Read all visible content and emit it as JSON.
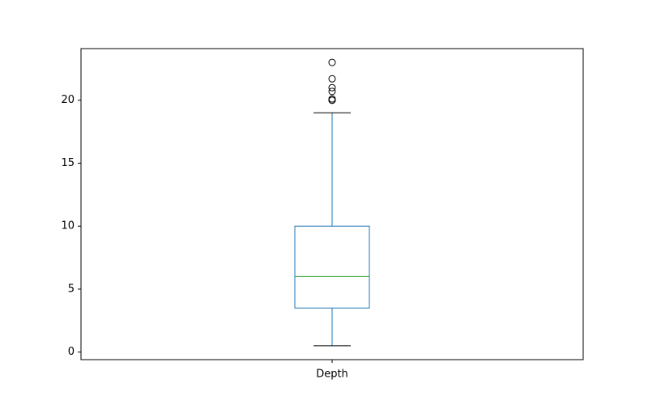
{
  "chart_data": {
    "type": "box",
    "title": "",
    "xlabel": "",
    "ylabel": "",
    "categories": [
      "Depth"
    ],
    "ylim": [
      -0.6,
      24.1
    ],
    "yticks": [
      0,
      5,
      10,
      15,
      20
    ],
    "ytick_labels": [
      "0",
      "5",
      "10",
      "15",
      "20"
    ],
    "grid": false,
    "boxes": [
      {
        "name": "Depth",
        "whisker_low": 0.5,
        "q1": 3.5,
        "median": 6.0,
        "q3": 10.0,
        "whisker_high": 19.0,
        "outliers": [
          20.0,
          20.0,
          20.1,
          20.7,
          21.0,
          21.7,
          23.0
        ]
      }
    ],
    "colors": {
      "box": "#1f77b4",
      "whisker": "#1f77b4",
      "cap": "#000000",
      "median": "#2ca02c",
      "flier": "#000000",
      "axes": "#000000"
    }
  }
}
